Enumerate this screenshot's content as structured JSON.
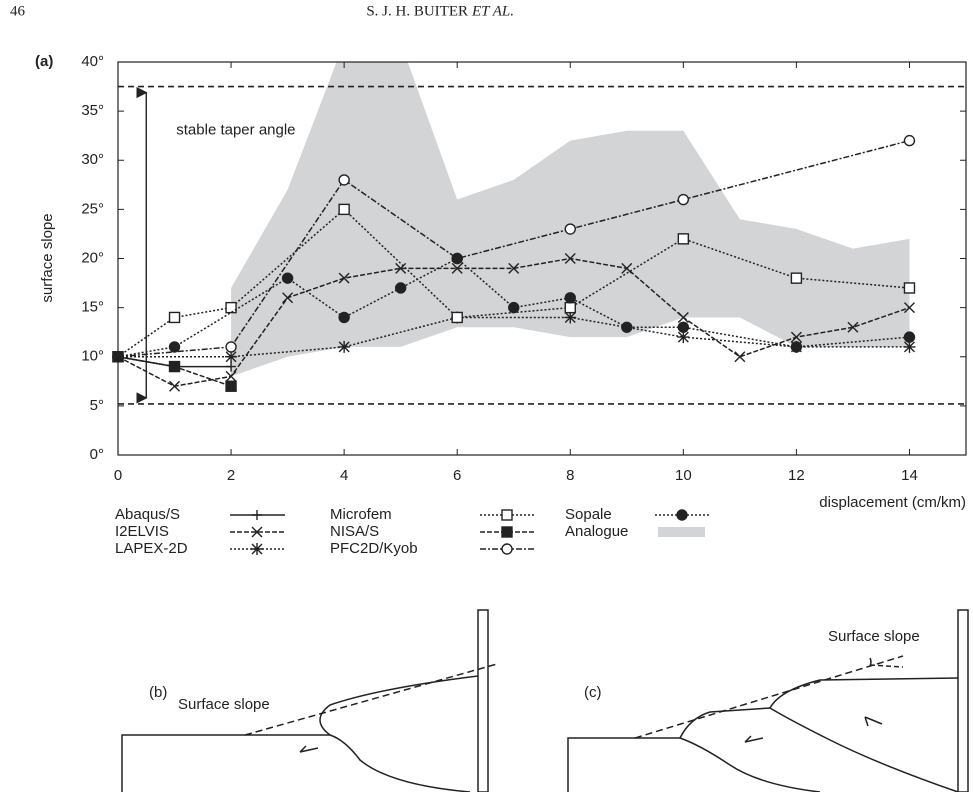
{
  "header": {
    "page": "46",
    "authors": "S. J. H. BUITER",
    "authors_suffix": "ET AL."
  },
  "chart_data": {
    "type": "line",
    "panel_label": "(a)",
    "y_label": "surface slope",
    "x_label": "displacement (cm/km)",
    "annotation": "stable taper angle",
    "xlim": [
      0,
      15
    ],
    "ylim": [
      0,
      40
    ],
    "xticks": [
      0,
      2,
      4,
      6,
      8,
      10,
      12,
      14
    ],
    "yticks": [
      {
        "value": 0,
        "label": "0°"
      },
      {
        "value": 5,
        "label": "5°"
      },
      {
        "value": 10,
        "label": "10°"
      },
      {
        "value": 15,
        "label": "15°"
      },
      {
        "value": 20,
        "label": "20°"
      },
      {
        "value": 25,
        "label": "25°"
      },
      {
        "value": 30,
        "label": "30°"
      },
      {
        "value": 35,
        "label": "35°"
      },
      {
        "value": 40,
        "label": "40°"
      }
    ],
    "reference_lines": [
      37.5,
      5.2
    ],
    "band": {
      "name": "Analogue",
      "color": "#d3d4d6",
      "x": [
        2,
        3,
        4,
        5,
        6,
        7,
        8,
        9,
        10,
        11,
        12,
        13,
        14
      ],
      "high": [
        17,
        27,
        42,
        42,
        26,
        28,
        32,
        33,
        33,
        24,
        23,
        21,
        22
      ],
      "low": [
        8,
        10,
        11,
        11,
        13,
        13,
        12,
        12,
        14,
        14,
        11,
        11,
        11
      ]
    },
    "series": [
      {
        "name": "Abaqus/S",
        "color": "#222",
        "dash": "solid",
        "marker": "plus",
        "x": [
          0,
          1,
          2
        ],
        "values": [
          10,
          9,
          9
        ]
      },
      {
        "name": "I2ELVIS",
        "color": "#222",
        "dash": "dashed",
        "marker": "x",
        "x": [
          0,
          1,
          2,
          3,
          4,
          5,
          6,
          7,
          8,
          9,
          10,
          11,
          12,
          13,
          14
        ],
        "values": [
          10,
          7,
          8,
          16,
          18,
          19,
          19,
          19,
          20,
          19,
          14,
          10,
          12,
          13,
          15
        ]
      },
      {
        "name": "LAPEX-2D",
        "color": "#222",
        "dash": "dotted",
        "marker": "asterisk",
        "x": [
          0,
          2,
          4,
          6,
          8,
          10,
          12,
          14
        ],
        "values": [
          10,
          10,
          11,
          14,
          14,
          12,
          11,
          11
        ]
      },
      {
        "name": "Microfem",
        "color": "#222",
        "dash": "dotted",
        "marker": "square-open",
        "x": [
          0,
          1,
          2,
          4,
          6,
          8,
          10,
          12,
          14
        ],
        "values": [
          10,
          14,
          15,
          25,
          14,
          15,
          22,
          18,
          17
        ]
      },
      {
        "name": "NISA/S",
        "color": "#222",
        "dash": "dashed",
        "marker": "square-filled",
        "x": [
          0,
          1,
          2
        ],
        "values": [
          10,
          9,
          7
        ]
      },
      {
        "name": "PFC2D/Kyob",
        "color": "#222",
        "dash": "dashdot",
        "marker": "circle-open",
        "x": [
          0,
          2,
          4,
          6,
          8,
          10,
          14
        ],
        "values": [
          10,
          11,
          28,
          20,
          23,
          26,
          32
        ]
      },
      {
        "name": "Sopale",
        "color": "#222",
        "dash": "dotted",
        "marker": "circle-filled",
        "x": [
          0,
          1,
          3,
          4,
          5,
          6,
          7,
          8,
          9,
          10,
          12,
          14
        ],
        "values": [
          10,
          11,
          18,
          14,
          17,
          20,
          15,
          16,
          13,
          13,
          11,
          12
        ]
      }
    ]
  },
  "diagrams": [
    {
      "label": "(b)",
      "text": "Surface slope"
    },
    {
      "label": "(c)",
      "text": "Surface slope"
    }
  ]
}
